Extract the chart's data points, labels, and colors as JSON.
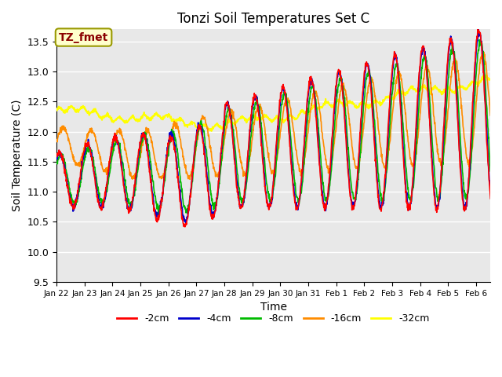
{
  "title": "Tonzi Soil Temperatures Set C",
  "xlabel": "Time",
  "ylabel": "Soil Temperature (C)",
  "ylim": [
    9.5,
    13.7
  ],
  "annotation": "TZ_fmet",
  "annotation_color": "#8B0000",
  "annotation_bg": "#FFFFCC",
  "bg_color": "#E8E8E8",
  "grid_color": "white",
  "series_colors": [
    "#FF0000",
    "#0000CC",
    "#00BB00",
    "#FF8C00",
    "#FFFF00"
  ],
  "series_labels": [
    "-2cm",
    "-4cm",
    "-8cm",
    "-16cm",
    "-32cm"
  ],
  "x_tick_labels": [
    "Jan 22",
    "Jan 23",
    "Jan 24",
    "Jan 25",
    "Jan 26",
    "Jan 27",
    "Jan 28",
    "Jan 29",
    "Jan 30",
    "Jan 31",
    "Feb 1",
    "Feb 2",
    "Feb 3",
    "Feb 4",
    "Feb 5",
    "Feb 6"
  ],
  "yticks": [
    9.5,
    10.0,
    10.5,
    11.0,
    11.5,
    12.0,
    12.5,
    13.0,
    13.5
  ]
}
